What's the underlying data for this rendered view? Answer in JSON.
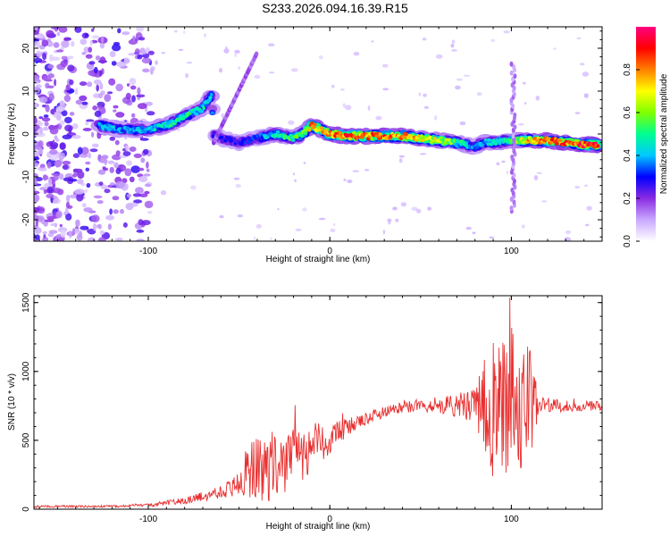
{
  "title": "S233.2026.094.16.39.R15",
  "chart_data": [
    {
      "type": "heatmap",
      "xlabel": "Height of straight line (km)",
      "ylabel": "Frequency (Hz)",
      "xlim": [
        -163,
        150
      ],
      "ylim": [
        -25,
        25
      ],
      "xticks": [
        -100,
        0,
        100
      ],
      "yticks": [
        -20,
        -10,
        0,
        10,
        20
      ],
      "colorbar": {
        "label": "Normalized spectral amplitude",
        "range": [
          0,
          1
        ],
        "ticks": [
          "0.0",
          "0.2",
          "0.4",
          "0.6",
          "0.8"
        ],
        "colors": [
          "#ffffff",
          "#c9a8ff",
          "#8a2be2",
          "#0000ff",
          "#00c8ff",
          "#00ff90",
          "#80ff00",
          "#ffff00",
          "#ff8000",
          "#ff0000",
          "#ff0080"
        ]
      },
      "ridge": {
        "x": [
          -127,
          -115,
          -100,
          -90,
          -80,
          -70,
          -65,
          -64,
          -60,
          -50,
          -40,
          -30,
          -20,
          -15,
          -10,
          -5,
          0,
          10,
          20,
          30,
          40,
          50,
          60,
          70,
          80,
          85,
          90,
          100,
          110,
          120,
          130,
          140,
          148
        ],
        "y": [
          2,
          1,
          1,
          2,
          4,
          6,
          9,
          0,
          -1,
          -2,
          -1,
          0,
          -1,
          0,
          2,
          1,
          0,
          -0.5,
          -0.5,
          -0.5,
          -0.5,
          -1,
          -1.5,
          -2,
          -3,
          -2,
          -2,
          -1.5,
          -1.5,
          -1.5,
          -2,
          -2.5,
          -2.5
        ],
        "amplitude": [
          0.45,
          0.4,
          0.45,
          0.5,
          0.55,
          0.5,
          0.45,
          0.3,
          0.3,
          0.3,
          0.35,
          0.5,
          0.55,
          0.6,
          0.85,
          0.75,
          0.9,
          0.95,
          0.9,
          0.9,
          0.85,
          0.8,
          0.7,
          0.6,
          0.4,
          0.45,
          0.5,
          0.55,
          0.8,
          0.9,
          0.9,
          0.95,
          0.95
        ]
      }
    },
    {
      "type": "line",
      "xlabel": "Height of straight line (km)",
      "ylabel": "SNR (10 * v/v)",
      "xlim": [
        -163,
        150
      ],
      "ylim": [
        0,
        1550
      ],
      "xticks": [
        -100,
        0,
        100
      ],
      "yticks": [
        0,
        500,
        1000,
        1500
      ],
      "color": "#e83030",
      "envelope": {
        "x": [
          -163,
          -120,
          -100,
          -80,
          -65,
          -55,
          -48,
          -45,
          -30,
          -10,
          0,
          10,
          20,
          30,
          40,
          60,
          80,
          90,
          100,
          110,
          115,
          130,
          150
        ],
        "y": [
          20,
          20,
          30,
          60,
          110,
          150,
          220,
          260,
          320,
          440,
          520,
          590,
          650,
          710,
          740,
          760,
          750,
          740,
          735,
          740,
          750,
          750,
          750
        ],
        "spread": [
          8,
          8,
          12,
          25,
          40,
          60,
          150,
          220,
          260,
          190,
          120,
          70,
          50,
          40,
          40,
          60,
          120,
          550,
          450,
          500,
          60,
          40,
          40
        ]
      }
    }
  ]
}
